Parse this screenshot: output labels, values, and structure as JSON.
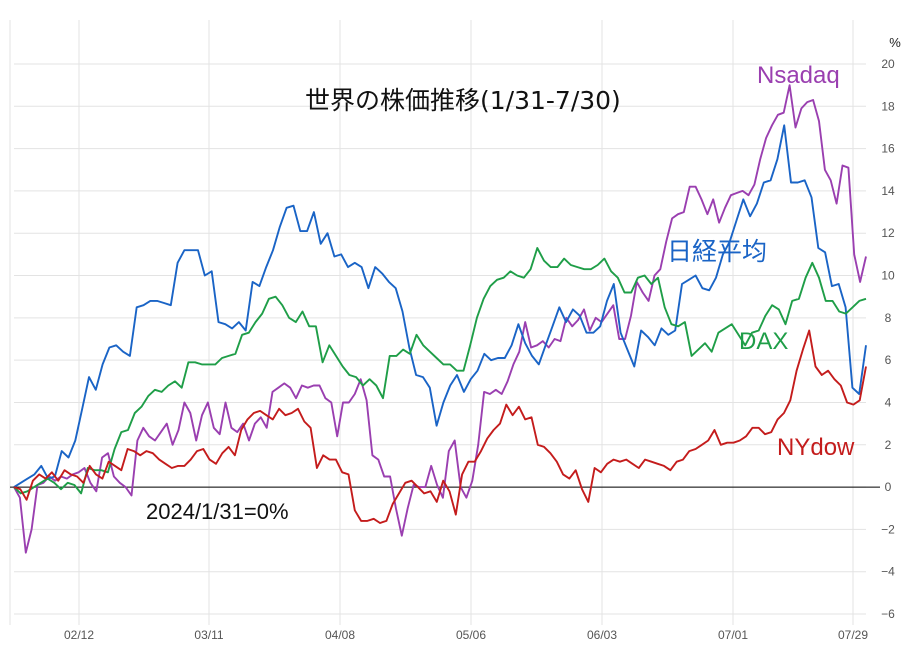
{
  "chart_data": {
    "type": "line",
    "title": "世界の株価推移(1/31-7/30)",
    "unit": "%",
    "baseline_label": "2024/1/31=0%",
    "ylim": [
      -6,
      20
    ],
    "y_ticks": [
      "20",
      "18",
      "16",
      "14",
      "12",
      "10",
      "8",
      "6",
      "4",
      "2",
      "0",
      "−2",
      "−4",
      "−6"
    ],
    "x_ticks": [
      "02/12",
      "03/11",
      "04/08",
      "05/06",
      "06/03",
      "07/01",
      "07/29"
    ],
    "grid": "on",
    "legend": "inline labels",
    "series": [
      {
        "name": "Nsadaq",
        "color": "#9a3fb0",
        "values": [
          0,
          -0.5,
          -3.1,
          -2,
          0.1,
          0.2,
          0.5,
          0.3,
          0.5,
          0.4,
          0.6,
          0.7,
          0.9,
          0.2,
          -0.2,
          1.4,
          1.6,
          0.5,
          0.2,
          0,
          -0.4,
          2.2,
          2.8,
          2.4,
          2.2,
          2.6,
          3,
          2,
          2.7,
          4,
          3.5,
          2.2,
          3.4,
          4,
          2.8,
          2.5,
          4,
          2.8,
          2.6,
          3,
          2.2,
          3,
          3.3,
          2.8,
          4.5,
          4.7,
          4.9,
          4.7,
          4.2,
          4.8,
          4.7,
          4.8,
          4.8,
          4.2,
          4,
          2.4,
          4,
          4,
          4.4,
          5.1,
          4.1,
          1.5,
          1.3,
          0.5,
          0.5,
          -1,
          -2.3,
          -1,
          0.1,
          0,
          0,
          1,
          0.1,
          -0.5,
          1.7,
          2.2,
          0,
          -0.5,
          0.3,
          2,
          4.5,
          4.4,
          4.6,
          4.4,
          5,
          5.8,
          6.4,
          7.8,
          6.6,
          6.7,
          6.9,
          6.6,
          7,
          6.9,
          8,
          7.6,
          7.9,
          8.4,
          7.4,
          8,
          7.8,
          8.2,
          8.6,
          7,
          7,
          8.1,
          9.7,
          9.2,
          8.8,
          10,
          10.3,
          11.6,
          12.7,
          12.9,
          13,
          14.2,
          14.2,
          13.6,
          12.9,
          13.6,
          12.5,
          13.2,
          13.8,
          13.9,
          14,
          13.8,
          14.3,
          15.5,
          16.5,
          17.1,
          17.6,
          17.7,
          19,
          17,
          17.9,
          18.2,
          18.3,
          17.3,
          15,
          14.5,
          13.4,
          15.2,
          15.1,
          11,
          9.7,
          10.9
        ]
      },
      {
        "name": "日経平均",
        "color": "#1a64c6",
        "values": [
          0,
          0.2,
          0.4,
          0.6,
          1,
          0.4,
          0.5,
          1.7,
          1.4,
          2.2,
          3.7,
          5.2,
          4.6,
          5.8,
          6.6,
          6.7,
          6.4,
          6.2,
          8.5,
          8.6,
          8.8,
          8.8,
          8.7,
          8.6,
          10.6,
          11.2,
          11.2,
          11.2,
          10,
          10.2,
          7.8,
          7.7,
          7.5,
          7.8,
          7.4,
          9.7,
          9.5,
          10.4,
          11.2,
          12.3,
          13.2,
          13.3,
          12.1,
          12.1,
          13,
          11.5,
          12,
          10.9,
          11,
          10.4,
          10.6,
          10.4,
          9.4,
          10.4,
          10.1,
          9.7,
          9.4,
          8.3,
          6.6,
          5.3,
          5.2,
          4.7,
          2.9,
          4,
          4.8,
          5.3,
          4.5,
          5.1,
          5.5,
          6.3,
          6,
          6.1,
          6.1,
          6.7,
          7.7,
          6.8,
          6.2,
          5.8,
          6.7,
          7.6,
          8.5,
          7.8,
          8.4,
          8.1,
          7.3,
          7.3,
          7.6,
          8.8,
          9.6,
          7.3,
          6.5,
          5.7,
          7.4,
          7.1,
          6.7,
          7.5,
          7.2,
          7.4,
          9.6,
          9.8,
          10,
          9.4,
          9.3,
          9.9,
          11,
          11.6,
          12.6,
          13.6,
          12.8,
          13.4,
          14.4,
          14.5,
          15.5,
          17.1,
          14.4,
          14.4,
          14.5,
          13.7,
          11.3,
          11.1,
          9.5,
          9.6,
          8.5,
          4.7,
          4.4,
          6.7
        ]
      },
      {
        "name": "DAX",
        "color": "#1f9e48",
        "values": [
          0,
          -0.3,
          -0.2,
          0,
          0.2,
          0.4,
          0.2,
          -0.1,
          0.2,
          0.1,
          -0.3,
          0.9,
          0.8,
          0.8,
          0.7,
          1.8,
          2.6,
          2.7,
          3.5,
          3.8,
          4.3,
          4.6,
          4.5,
          4.8,
          5,
          4.7,
          5.9,
          5.9,
          5.8,
          5.8,
          5.8,
          6.1,
          6.2,
          6.3,
          7.2,
          7.3,
          7.8,
          8.2,
          8.9,
          9,
          8.6,
          8,
          7.8,
          8.3,
          7.6,
          7.6,
          5.9,
          6.7,
          6.2,
          5.7,
          5.3,
          5.2,
          4.8,
          5.1,
          4.8,
          4.2,
          6.2,
          6.2,
          6.5,
          6.3,
          7.2,
          6.7,
          6.4,
          6.1,
          5.8,
          5.8,
          5.5,
          5.5,
          6.7,
          8,
          8.9,
          9.5,
          9.8,
          9.9,
          10.2,
          10,
          9.9,
          10.3,
          11.3,
          10.7,
          10.4,
          10.4,
          10.8,
          10.5,
          10.4,
          10.3,
          10.3,
          10.5,
          10.8,
          10.2,
          9.9,
          9.2,
          9.2,
          9.9,
          10,
          9.6,
          9.9,
          8.5,
          7.7,
          7.6,
          7.8,
          6.2,
          6.5,
          6.8,
          6.4,
          7.3,
          7.5,
          7.7,
          7.2,
          6.7,
          7.3,
          7.4,
          8.1,
          8.6,
          8.4,
          7.7,
          8.8,
          8.9,
          9.9,
          10.6,
          9.9,
          8.8,
          8.8,
          8.3,
          8.2,
          8.5,
          8.8,
          8.9
        ]
      },
      {
        "name": "NYdow",
        "color": "#c41c1c",
        "values": [
          0,
          -0.1,
          -0.6,
          0.3,
          0.6,
          0.4,
          0.7,
          0.3,
          0.8,
          0.6,
          0.5,
          0.2,
          1,
          0.6,
          0.4,
          1.2,
          1,
          0.8,
          1.8,
          1.7,
          1.5,
          1.7,
          1.6,
          1.3,
          1.1,
          0.9,
          1,
          1,
          1.3,
          1.7,
          1.8,
          1.3,
          1.1,
          1.6,
          1.9,
          1.5,
          2.7,
          3.2,
          3.5,
          3.6,
          3.4,
          3.2,
          3.7,
          3.4,
          3.5,
          3.7,
          3.1,
          2.8,
          0.9,
          1.5,
          1.3,
          1.3,
          0.7,
          0.6,
          -1.1,
          -1.6,
          -1.6,
          -1.5,
          -1.7,
          -1.6,
          -0.8,
          -0.3,
          0.2,
          0.3,
          0,
          -0.3,
          -0.2,
          -0.7,
          0.3,
          -0.2,
          -1.3,
          0.6,
          1.2,
          1.2,
          1.7,
          2.3,
          2.7,
          3,
          3.9,
          3.4,
          3.8,
          3.2,
          3.3,
          2,
          1.9,
          1.6,
          1.2,
          0.6,
          0.4,
          0.8,
          -0.1,
          -0.7,
          0.9,
          0.7,
          1.1,
          1.3,
          1.2,
          1.3,
          1.1,
          0.9,
          1.3,
          1.2,
          1.1,
          1,
          0.8,
          1.2,
          1.3,
          1.7,
          1.8,
          2,
          2.2,
          2.7,
          2,
          2.1,
          2.1,
          2.2,
          2.4,
          2.8,
          2.8,
          2.5,
          2.6,
          3.2,
          3.5,
          4.1,
          5.5,
          6.5,
          7.4,
          5.7,
          5.3,
          5.5,
          5.1,
          4.8,
          4,
          3.9,
          4.1,
          5.7
        ]
      }
    ]
  }
}
